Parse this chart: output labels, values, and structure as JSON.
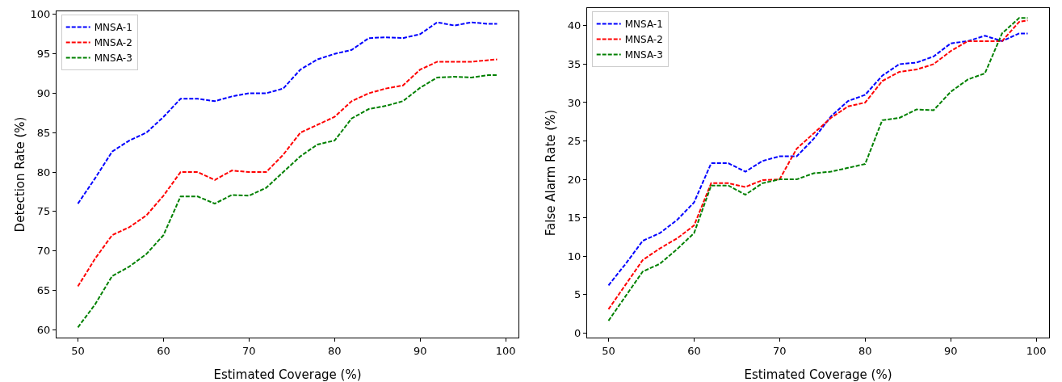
{
  "chart_data": [
    {
      "type": "line",
      "xlabel": "Estimated Coverage (%)",
      "ylabel": "Detection Rate (%)",
      "x": [
        50,
        52,
        54,
        56,
        58,
        60,
        62,
        64,
        66,
        68,
        70,
        72,
        74,
        76,
        78,
        80,
        82,
        84,
        86,
        88,
        90,
        92,
        94,
        96,
        98,
        99
      ],
      "xlim": [
        47.5,
        101.5
      ],
      "xticks": [
        50,
        60,
        70,
        80,
        90,
        100
      ],
      "ylim": [
        59,
        100.4
      ],
      "yticks": [
        60,
        65,
        70,
        75,
        80,
        85,
        90,
        95,
        100
      ],
      "grid": false,
      "legend": "top left",
      "line_style": "dashed",
      "marker": "none",
      "series": [
        {
          "name": "MNSA-1",
          "color": "#0000ff",
          "values": [
            76,
            79.2,
            82.6,
            84,
            85,
            87,
            89.3,
            89.3,
            89,
            89.6,
            90,
            90,
            90.6,
            93,
            94.3,
            95,
            95.5,
            97,
            97.1,
            97,
            97.5,
            99,
            98.6,
            99,
            98.8,
            98.8
          ]
        },
        {
          "name": "MNSA-2",
          "color": "#ff0000",
          "values": [
            65.5,
            69,
            72,
            73,
            74.5,
            77,
            80,
            80,
            79,
            80.2,
            80,
            80,
            82.2,
            85,
            86,
            87,
            89,
            90,
            90.6,
            91,
            93,
            94,
            94,
            94,
            94.2,
            94.3
          ]
        },
        {
          "name": "MNSA-3",
          "color": "#008000",
          "values": [
            60.3,
            63.2,
            66.8,
            68,
            69.6,
            72,
            76.9,
            76.9,
            76,
            77.1,
            77,
            78,
            80,
            82,
            83.5,
            84,
            86.8,
            88,
            88.4,
            89,
            90.7,
            92,
            92.1,
            92,
            92.3,
            92.3
          ]
        }
      ]
    },
    {
      "type": "line",
      "xlabel": "Estimated Coverage (%)",
      "ylabel": "False Alarm Rate (%)",
      "x": [
        50,
        52,
        54,
        56,
        58,
        60,
        62,
        64,
        66,
        68,
        70,
        72,
        74,
        76,
        78,
        80,
        82,
        84,
        86,
        88,
        90,
        92,
        94,
        96,
        98,
        99
      ],
      "xlim": [
        47.5,
        101.5
      ],
      "xticks": [
        50,
        60,
        70,
        80,
        90,
        100
      ],
      "ylim": [
        -0.6,
        42.3
      ],
      "yticks": [
        0,
        5,
        10,
        15,
        20,
        25,
        30,
        35,
        40
      ],
      "grid": false,
      "legend": "top left",
      "line_style": "dashed",
      "marker": "none",
      "series": [
        {
          "name": "MNSA-1",
          "color": "#0000ff",
          "values": [
            6.2,
            9,
            12,
            13,
            14.7,
            17,
            22.1,
            22.1,
            21,
            22.4,
            23,
            23,
            25.3,
            28.2,
            30.2,
            31,
            33.5,
            35,
            35.2,
            36,
            37.7,
            38,
            38.7,
            38,
            39,
            39
          ]
        },
        {
          "name": "MNSA-2",
          "color": "#ff0000",
          "values": [
            3.1,
            6.3,
            9.5,
            11,
            12.3,
            14,
            19.5,
            19.5,
            19,
            19.9,
            20,
            24,
            26,
            28,
            29.5,
            30,
            32.8,
            34,
            34.3,
            35,
            36.7,
            38,
            38,
            38,
            40.5,
            40.7
          ]
        },
        {
          "name": "MNSA-3",
          "color": "#008000",
          "values": [
            1.6,
            4.8,
            8,
            9,
            10.9,
            13,
            19.2,
            19.2,
            18,
            19.5,
            20,
            20,
            20.8,
            21,
            21.5,
            22,
            27.7,
            28,
            29.1,
            29,
            31.4,
            33,
            33.8,
            39,
            41,
            41
          ]
        }
      ]
    }
  ]
}
